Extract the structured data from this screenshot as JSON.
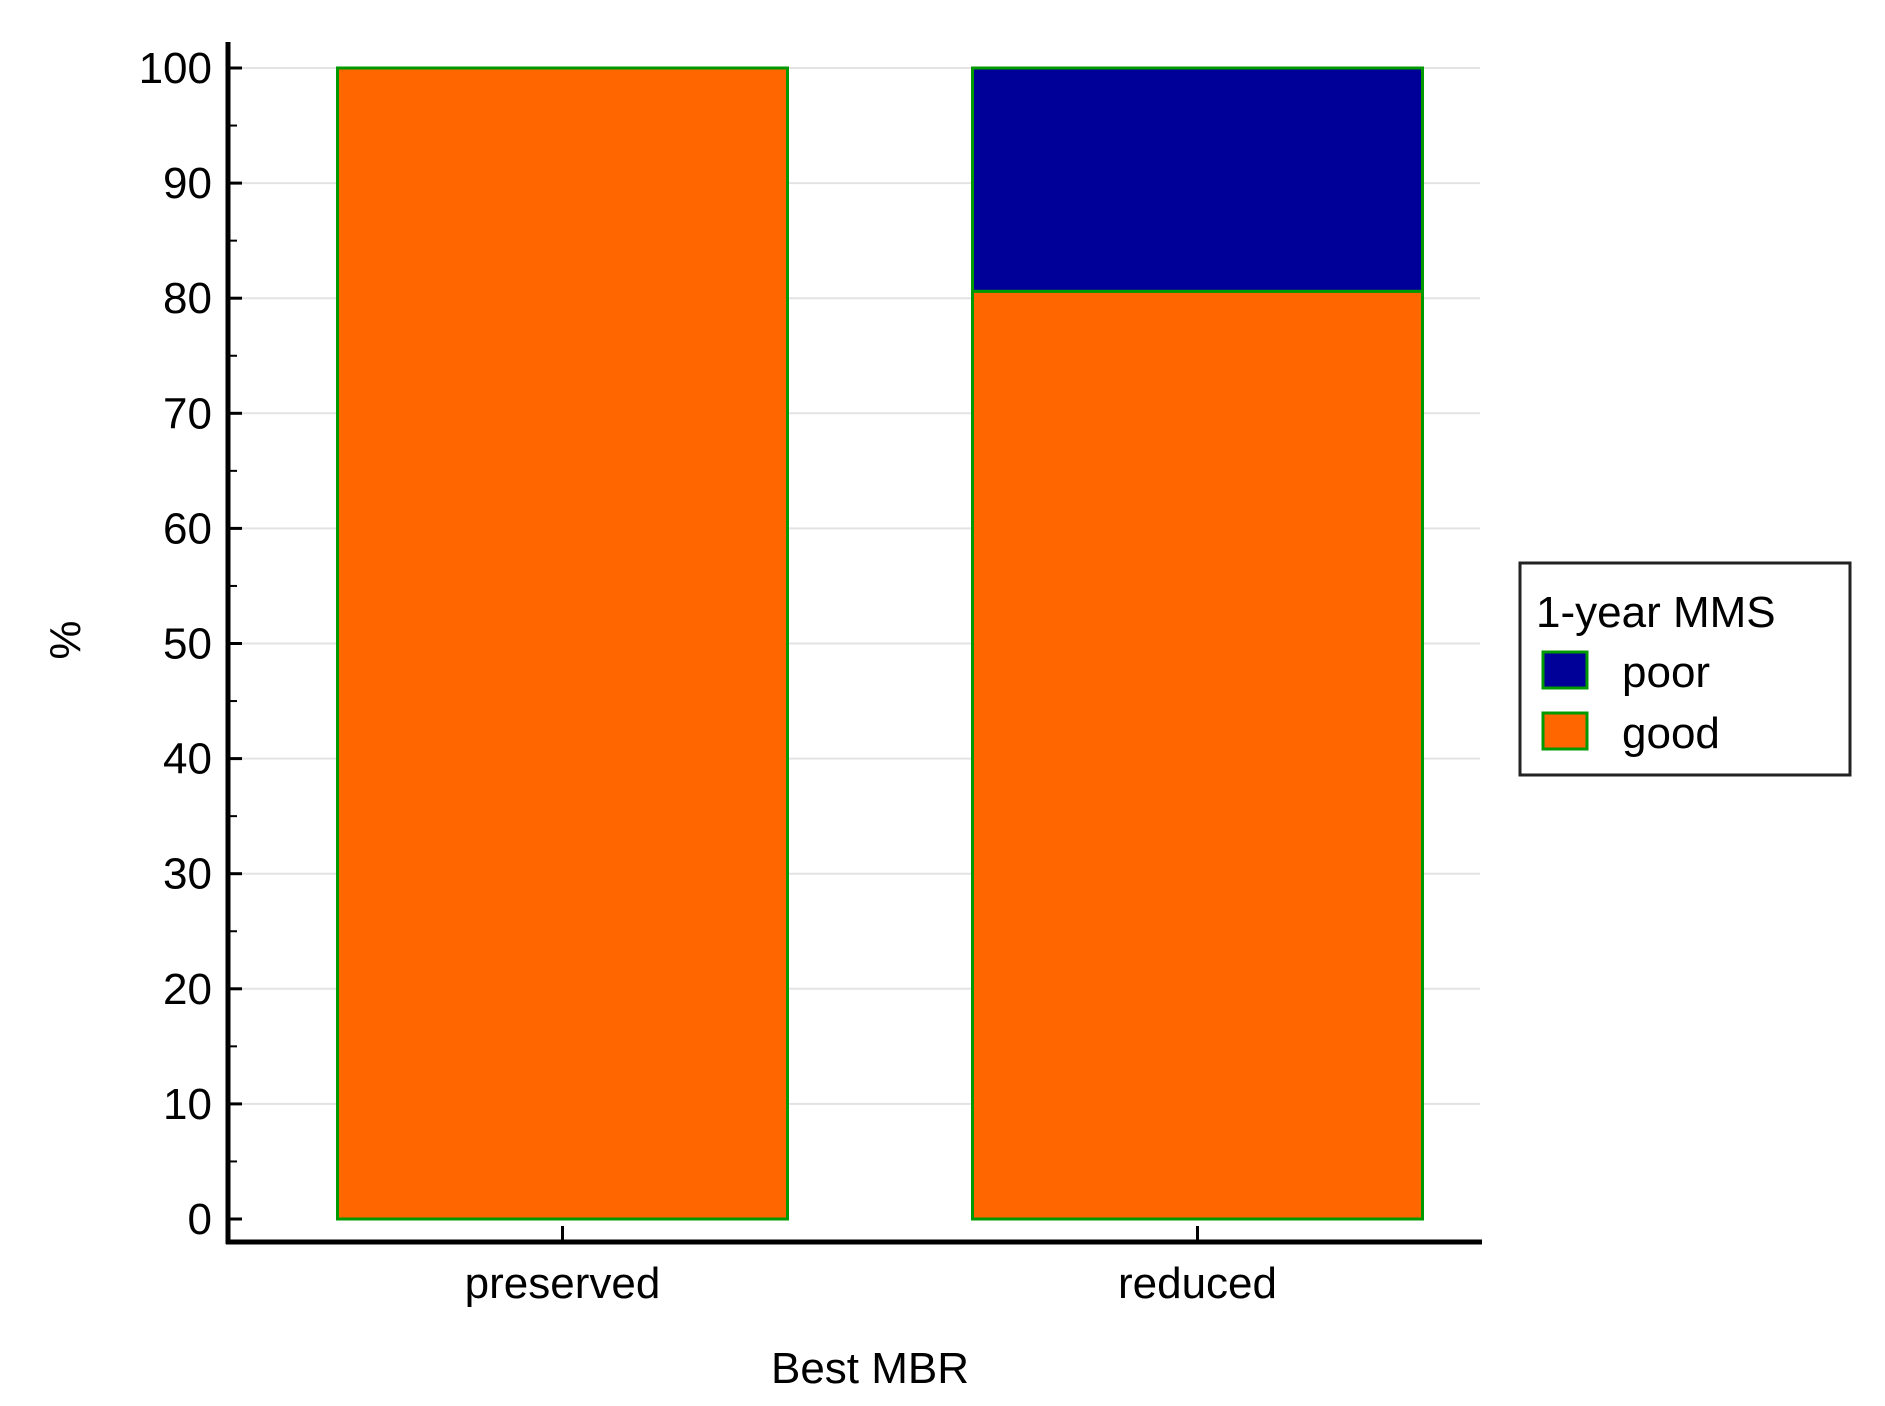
{
  "chart_data": {
    "type": "bar",
    "stacked": true,
    "title": "",
    "xlabel": "Best MBR",
    "ylabel": "%",
    "ylim": [
      0,
      100
    ],
    "yticks": [
      0,
      10,
      20,
      30,
      40,
      50,
      60,
      70,
      80,
      90,
      100
    ],
    "grid": true,
    "categories": [
      "preserved",
      "reduced"
    ],
    "series": [
      {
        "name": "good",
        "values": [
          100,
          80.6
        ],
        "color": "#ff6600"
      },
      {
        "name": "poor",
        "values": [
          0,
          19.4
        ],
        "color": "#000099"
      }
    ],
    "bar_edge_color": "#009900",
    "legend": {
      "title": "1-year MMS",
      "placement": "right",
      "entries": [
        "poor",
        "good"
      ]
    }
  }
}
